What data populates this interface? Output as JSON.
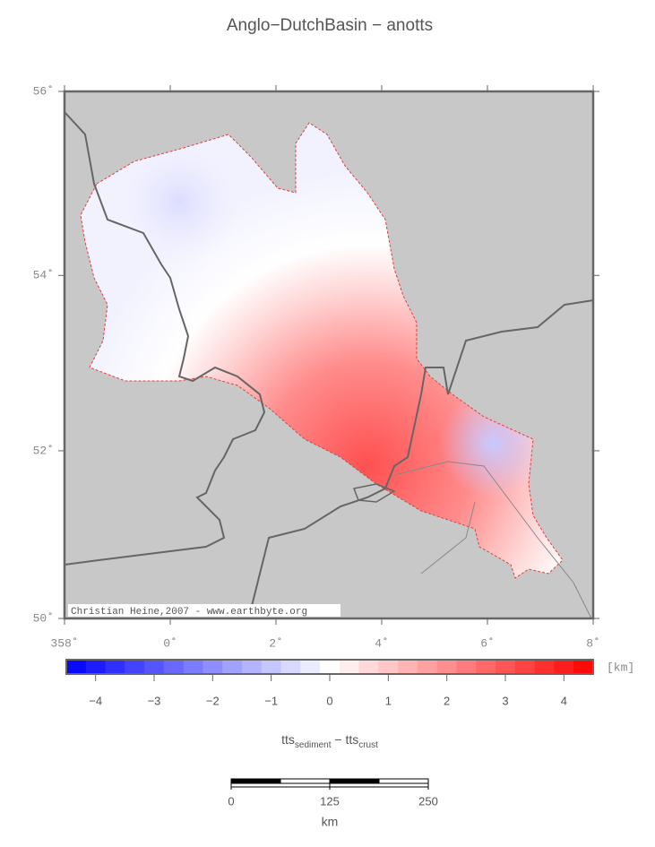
{
  "title": "Anglo−DutchBasin − anotts",
  "map": {
    "lon_range": [
      -2,
      8
    ],
    "lat_range": [
      50,
      56
    ],
    "lon_ticks": [
      {
        "value": -2,
        "label": "358˚"
      },
      {
        "value": 0,
        "label": "0˚"
      },
      {
        "value": 2,
        "label": "2˚"
      },
      {
        "value": 4,
        "label": "4˚"
      },
      {
        "value": 6,
        "label": "6˚"
      },
      {
        "value": 8,
        "label": "8˚"
      }
    ],
    "lat_ticks": [
      {
        "value": 50,
        "label": "50˚"
      },
      {
        "value": 52,
        "label": "52˚"
      },
      {
        "value": 54,
        "label": "54˚"
      },
      {
        "value": 56,
        "label": "56˚"
      }
    ],
    "credit": "Christian Heine,2007 - www.earthbyte.org"
  },
  "colorbar": {
    "range": [
      -4.5,
      4.5
    ],
    "colors": [
      "#0000ff",
      "#ffffff",
      "#ff0000"
    ],
    "ticks": [
      {
        "value": -4,
        "label": "−4"
      },
      {
        "value": -3,
        "label": "−3"
      },
      {
        "value": -2,
        "label": "−2"
      },
      {
        "value": -1,
        "label": "−1"
      },
      0,
      1,
      2,
      3,
      4
    ],
    "unit": "[km]",
    "label": {
      "first": "tts",
      "first_sub": "sediment",
      "separator": " − ",
      "second": "tts",
      "second_sub": "crust"
    }
  },
  "scale_bar": {
    "ticks": [
      0,
      125,
      250
    ],
    "unit": "km"
  }
}
